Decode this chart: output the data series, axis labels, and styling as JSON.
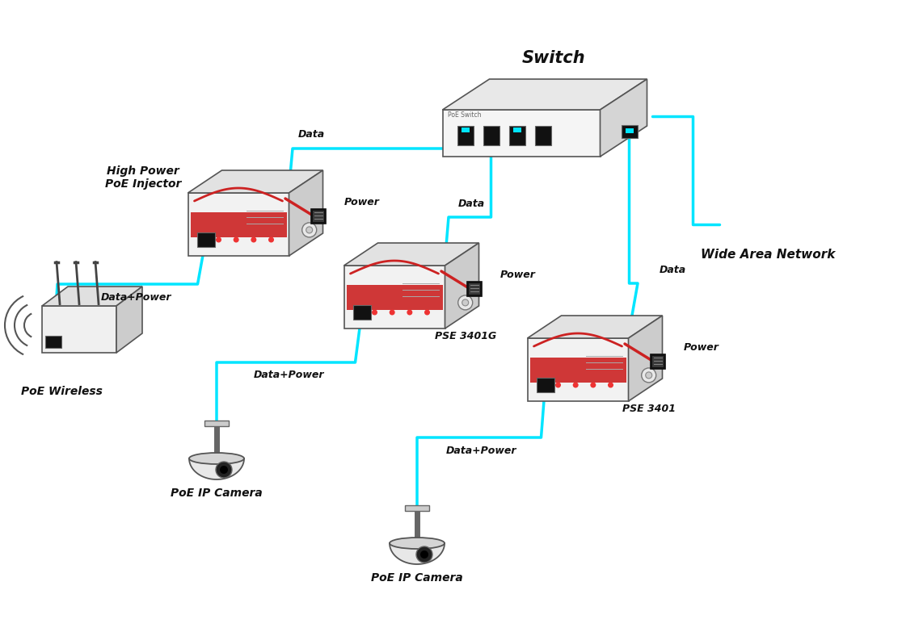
{
  "background_color": "#ffffff",
  "cyan_color": "#00e5ff",
  "red_color": "#cc2222",
  "line_width": 2.5,
  "switch_label": "Switch",
  "injector1_label": "High Power\nPoE Injector",
  "injector2_label": "PSE 3401G",
  "injector3_label": "PSE 3401",
  "wifi_label": "PoE Wireless",
  "camera1_label": "PoE IP Camera",
  "camera2_label": "PoE IP Camera",
  "wan_label": "Wide Area Network",
  "data_label": "Data",
  "power_label": "Power",
  "data_power_label": "Data+Power"
}
